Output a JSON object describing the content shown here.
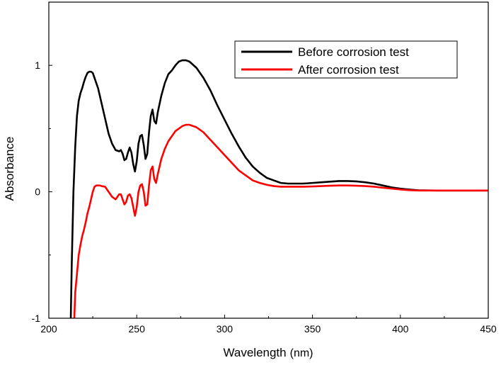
{
  "chart_data": {
    "type": "line",
    "title": "",
    "xlabel": "Wavelength",
    "xlabel_unit": "(nm)",
    "ylabel": "Absorbance",
    "xlim": [
      200,
      450
    ],
    "ylim": [
      -1,
      1.5
    ],
    "x_ticks": [
      200,
      250,
      300,
      350,
      400,
      450
    ],
    "y_ticks": [
      -1,
      0,
      1
    ],
    "grid": false,
    "legend_position": "top-right",
    "series": [
      {
        "name": "Before corrosion test",
        "color": "#000000",
        "points": [
          [
            212.5,
            -1.0
          ],
          [
            213,
            -0.6
          ],
          [
            214,
            0.0
          ],
          [
            215,
            0.35
          ],
          [
            216,
            0.6
          ],
          [
            217,
            0.72
          ],
          [
            218,
            0.78
          ],
          [
            219,
            0.82
          ],
          [
            220,
            0.87
          ],
          [
            221,
            0.91
          ],
          [
            222,
            0.94
          ],
          [
            223,
            0.95
          ],
          [
            224,
            0.95
          ],
          [
            225,
            0.94
          ],
          [
            226,
            0.9
          ],
          [
            228,
            0.82
          ],
          [
            230,
            0.7
          ],
          [
            232,
            0.58
          ],
          [
            234,
            0.46
          ],
          [
            236,
            0.38
          ],
          [
            238,
            0.33
          ],
          [
            240,
            0.32
          ],
          [
            241,
            0.33
          ],
          [
            242,
            0.3
          ],
          [
            243,
            0.25
          ],
          [
            244,
            0.26
          ],
          [
            245,
            0.31
          ],
          [
            246,
            0.35
          ],
          [
            247,
            0.31
          ],
          [
            248,
            0.22
          ],
          [
            249,
            0.16
          ],
          [
            250,
            0.24
          ],
          [
            251,
            0.38
          ],
          [
            252,
            0.44
          ],
          [
            253,
            0.45
          ],
          [
            254,
            0.37
          ],
          [
            255,
            0.26
          ],
          [
            256,
            0.3
          ],
          [
            257,
            0.47
          ],
          [
            258,
            0.6
          ],
          [
            259,
            0.65
          ],
          [
            260,
            0.56
          ],
          [
            261,
            0.54
          ],
          [
            262,
            0.63
          ],
          [
            264,
            0.76
          ],
          [
            266,
            0.86
          ],
          [
            268,
            0.93
          ],
          [
            270,
            0.96
          ],
          [
            272,
            1.0
          ],
          [
            274,
            1.03
          ],
          [
            276,
            1.04
          ],
          [
            278,
            1.04
          ],
          [
            280,
            1.03
          ],
          [
            284,
            0.98
          ],
          [
            288,
            0.9
          ],
          [
            292,
            0.8
          ],
          [
            296,
            0.68
          ],
          [
            300,
            0.57
          ],
          [
            304,
            0.46
          ],
          [
            308,
            0.36
          ],
          [
            312,
            0.27
          ],
          [
            316,
            0.2
          ],
          [
            320,
            0.15
          ],
          [
            324,
            0.11
          ],
          [
            328,
            0.09
          ],
          [
            332,
            0.07
          ],
          [
            336,
            0.065
          ],
          [
            340,
            0.065
          ],
          [
            345,
            0.065
          ],
          [
            350,
            0.07
          ],
          [
            355,
            0.075
          ],
          [
            360,
            0.08
          ],
          [
            365,
            0.085
          ],
          [
            370,
            0.085
          ],
          [
            375,
            0.082
          ],
          [
            380,
            0.075
          ],
          [
            385,
            0.065
          ],
          [
            390,
            0.05
          ],
          [
            395,
            0.035
          ],
          [
            400,
            0.025
          ],
          [
            405,
            0.018
          ],
          [
            410,
            0.012
          ],
          [
            420,
            0.01
          ],
          [
            430,
            0.01
          ],
          [
            440,
            0.01
          ],
          [
            450,
            0.01
          ]
        ]
      },
      {
        "name": "After corrosion test",
        "color": "#ff0000",
        "points": [
          [
            214.5,
            -1.0
          ],
          [
            215,
            -0.8
          ],
          [
            216,
            -0.65
          ],
          [
            217,
            -0.5
          ],
          [
            218,
            -0.42
          ],
          [
            219,
            -0.35
          ],
          [
            220,
            -0.3
          ],
          [
            221,
            -0.24
          ],
          [
            222,
            -0.17
          ],
          [
            223,
            -0.12
          ],
          [
            224,
            -0.06
          ],
          [
            225,
            0.0
          ],
          [
            226,
            0.04
          ],
          [
            227,
            0.05
          ],
          [
            228,
            0.05
          ],
          [
            229,
            0.05
          ],
          [
            230,
            0.045
          ],
          [
            232,
            0.04
          ],
          [
            234,
            0.0
          ],
          [
            236,
            -0.04
          ],
          [
            238,
            -0.06
          ],
          [
            239,
            -0.04
          ],
          [
            240,
            -0.02
          ],
          [
            241,
            -0.02
          ],
          [
            242,
            -0.06
          ],
          [
            243,
            -0.1
          ],
          [
            244,
            -0.08
          ],
          [
            245,
            -0.03
          ],
          [
            246,
            -0.02
          ],
          [
            247,
            -0.05
          ],
          [
            248,
            -0.12
          ],
          [
            249,
            -0.19
          ],
          [
            250,
            -0.12
          ],
          [
            251,
            0.0
          ],
          [
            252,
            0.05
          ],
          [
            253,
            0.06
          ],
          [
            254,
            0.0
          ],
          [
            255,
            -0.11
          ],
          [
            256,
            -0.1
          ],
          [
            257,
            0.05
          ],
          [
            258,
            0.17
          ],
          [
            259,
            0.2
          ],
          [
            260,
            0.1
          ],
          [
            261,
            0.07
          ],
          [
            262,
            0.14
          ],
          [
            264,
            0.26
          ],
          [
            266,
            0.34
          ],
          [
            268,
            0.4
          ],
          [
            270,
            0.44
          ],
          [
            272,
            0.48
          ],
          [
            274,
            0.5
          ],
          [
            276,
            0.52
          ],
          [
            278,
            0.53
          ],
          [
            280,
            0.53
          ],
          [
            284,
            0.51
          ],
          [
            288,
            0.47
          ],
          [
            292,
            0.41
          ],
          [
            296,
            0.35
          ],
          [
            300,
            0.29
          ],
          [
            304,
            0.23
          ],
          [
            308,
            0.17
          ],
          [
            312,
            0.13
          ],
          [
            316,
            0.09
          ],
          [
            320,
            0.07
          ],
          [
            324,
            0.055
          ],
          [
            328,
            0.045
          ],
          [
            332,
            0.04
          ],
          [
            336,
            0.04
          ],
          [
            340,
            0.04
          ],
          [
            345,
            0.04
          ],
          [
            350,
            0.042
          ],
          [
            355,
            0.045
          ],
          [
            360,
            0.048
          ],
          [
            365,
            0.05
          ],
          [
            370,
            0.05
          ],
          [
            375,
            0.048
          ],
          [
            380,
            0.045
          ],
          [
            385,
            0.04
          ],
          [
            390,
            0.032
          ],
          [
            395,
            0.025
          ],
          [
            400,
            0.018
          ],
          [
            405,
            0.013
          ],
          [
            410,
            0.01
          ],
          [
            420,
            0.01
          ],
          [
            430,
            0.01
          ],
          [
            440,
            0.01
          ],
          [
            450,
            0.01
          ]
        ]
      }
    ]
  }
}
